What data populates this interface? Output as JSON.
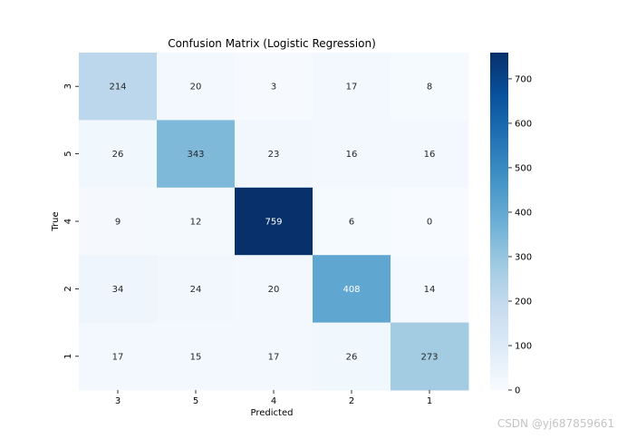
{
  "chart_data": {
    "type": "heatmap",
    "title": "Confusion Matrix (Logistic Regression)",
    "xlabel": "Predicted",
    "ylabel": "True",
    "x_categories": [
      "3",
      "5",
      "4",
      "2",
      "1"
    ],
    "y_categories": [
      "3",
      "5",
      "4",
      "2",
      "1"
    ],
    "values": [
      [
        214,
        20,
        3,
        17,
        8
      ],
      [
        26,
        343,
        23,
        16,
        16
      ],
      [
        9,
        12,
        759,
        6,
        0
      ],
      [
        34,
        24,
        20,
        408,
        14
      ],
      [
        17,
        15,
        17,
        26,
        273
      ]
    ],
    "colormap": "Blues",
    "color_range": [
      0,
      759
    ],
    "colorbar_ticks": [
      0,
      100,
      200,
      300,
      400,
      500,
      600,
      700
    ],
    "grid": false
  },
  "watermark": "CSDN @yj687859661"
}
